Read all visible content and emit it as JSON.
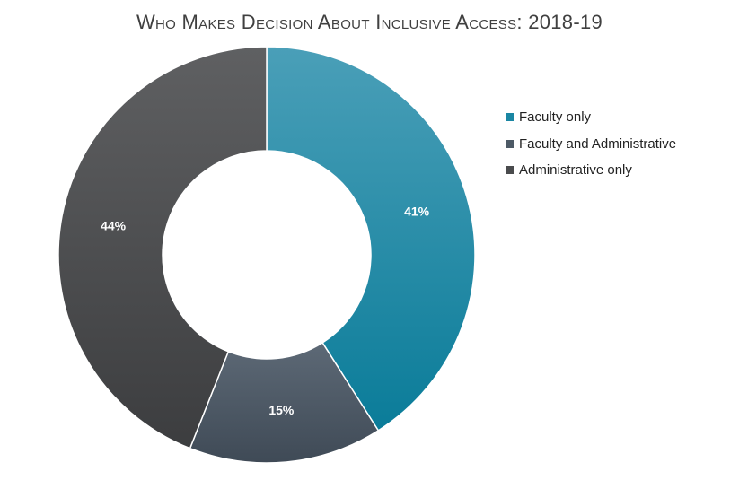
{
  "chart_data": {
    "type": "pie",
    "title": "Who Makes Decision About Inclusive Access: 2018-19",
    "categories": [
      "Faculty only",
      "Faculty and Administrative",
      "Administrative only"
    ],
    "values": [
      41,
      15,
      44
    ],
    "data_labels": [
      "41%",
      "15%",
      "44%"
    ],
    "colors": [
      "#1a86a3",
      "#4d5a66",
      "#4a4b4d"
    ],
    "legend_position": "right"
  }
}
